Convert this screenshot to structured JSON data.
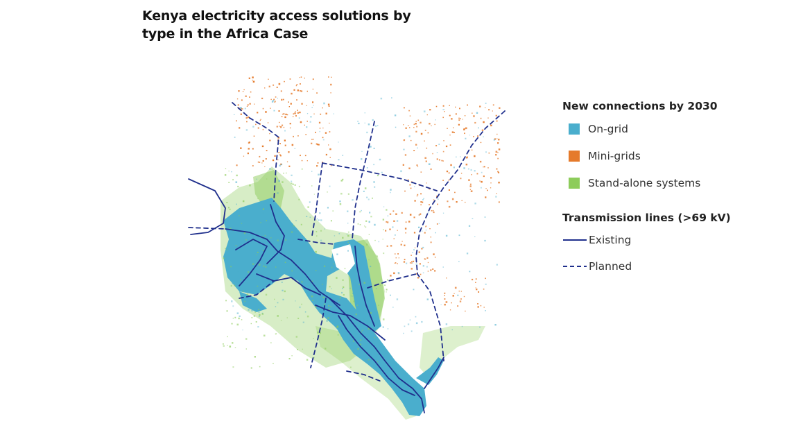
{
  "title": "Kenya electricity access solutions by type in the Africa Case",
  "legend": {
    "connections_heading": "New connections by 2030",
    "connections": [
      {
        "label": "On-grid",
        "color": "#4aaecd"
      },
      {
        "label": "Mini-grids",
        "color": "#e57a2b"
      },
      {
        "label": "Stand-alone systems",
        "color": "#8dcc5b"
      }
    ],
    "lines_heading": "Transmission lines (>69 kV)",
    "lines": [
      {
        "label": "Existing",
        "style": "solid",
        "color": "#1f2f8c"
      },
      {
        "label": "Planned",
        "style": "dashed",
        "color": "#1f2f8c"
      }
    ]
  },
  "colors": {
    "on_grid": "#4aaecd",
    "mini_grids": "#e57a2b",
    "stand_alone": "#8dcc5b",
    "transmission": "#1f2f8c"
  }
}
